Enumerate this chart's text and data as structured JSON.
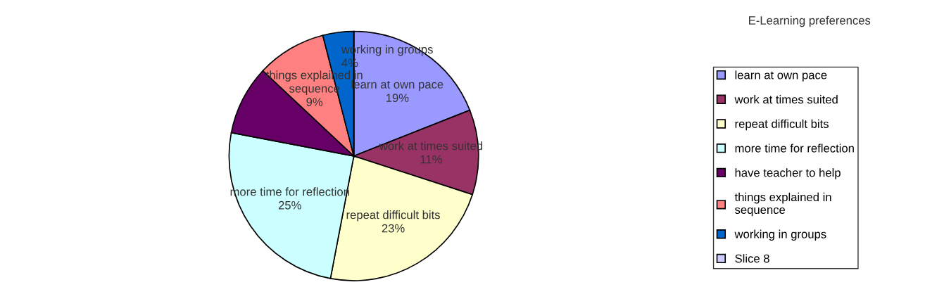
{
  "chart_data": {
    "type": "pie",
    "categories": [
      "learn at own pace",
      "work at times suited",
      "repeat difficult bits",
      "more time for reflection",
      "have teacher to help",
      "things explained in\nsequence",
      "working in groups",
      "Slice 8"
    ],
    "values": [
      19,
      11,
      23,
      25,
      9,
      9,
      4,
      0
    ],
    "colors": [
      "#9999ff",
      "#993366",
      "#ffffcc",
      "#ccffff",
      "#660066",
      "#ff8080",
      "#0066cc",
      "#ccccff"
    ],
    "value_labels": [
      "19%",
      "11%",
      "23%",
      "25%",
      null,
      "9%",
      "4%",
      null
    ],
    "legend_title": "E-Learning preferences",
    "legend": "right"
  }
}
